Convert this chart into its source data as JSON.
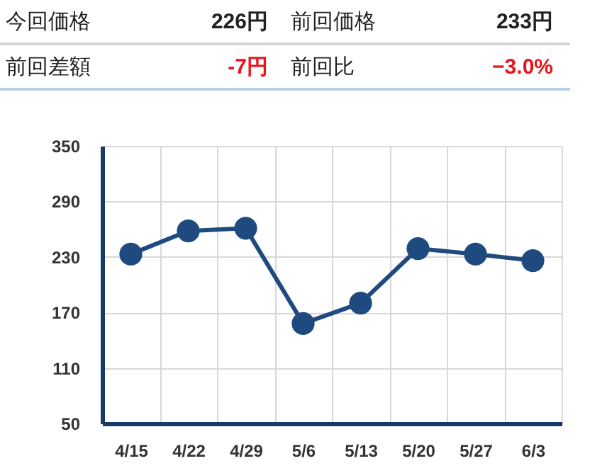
{
  "chart_data": [
    {
      "type": "other",
      "annotations": [
        "今回価格",
        "226円",
        "前回価格",
        "233円",
        "前回差額",
        "-7円",
        "前回比",
        "−3.0%"
      ]
    },
    {
      "type": "line",
      "categories": [
        "4/15",
        "4/22",
        "4/29",
        "5/6",
        "5/13",
        "5/20",
        "5/27",
        "6/3"
      ],
      "series": [
        {
          "color": "#1f4a80",
          "values": [
            233,
            258,
            261,
            158,
            180,
            239,
            233,
            226
          ]
        }
      ],
      "ylim": [
        50,
        350
      ],
      "yticks": [
        50,
        110,
        170,
        230,
        290,
        350
      ],
      "grid": true,
      "marker": "circle",
      "line_style": "solid"
    }
  ]
}
